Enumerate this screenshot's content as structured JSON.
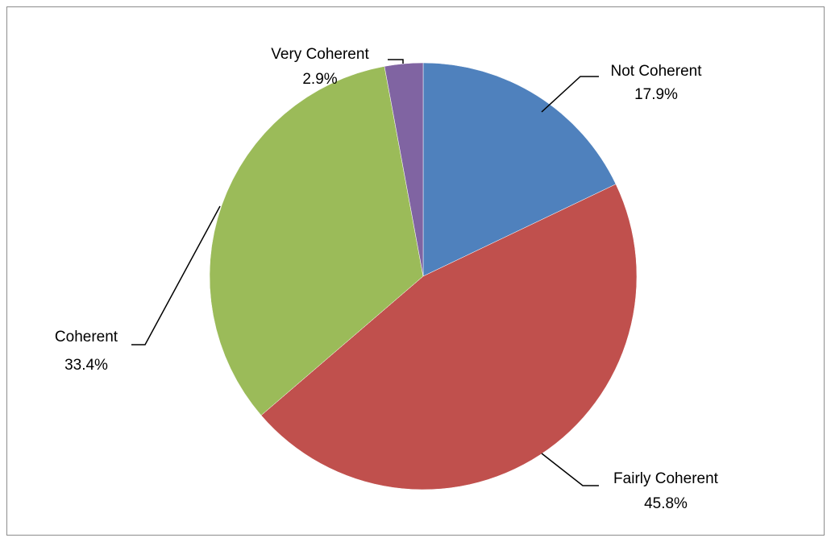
{
  "chart_data": {
    "type": "pie",
    "title": "",
    "start_angle_deg": 0,
    "direction": "clockwise",
    "series": [
      {
        "values": [
          17.9,
          45.8,
          33.4,
          2.9
        ],
        "categories": [
          "Not Coherent",
          "Fairly Coherent",
          "Coherent",
          "Very Coherent"
        ]
      }
    ],
    "slices": [
      {
        "label": "Not Coherent",
        "value": 17.9,
        "percent_label": "17.9%",
        "color": "#4f81bd"
      },
      {
        "label": "Fairly Coherent",
        "value": 45.8,
        "percent_label": "45.8%",
        "color": "#c0504d"
      },
      {
        "label": "Coherent",
        "value": 33.4,
        "percent_label": "33.4%",
        "color": "#9bbb59"
      },
      {
        "label": "Very Coherent",
        "value": 2.9,
        "percent_label": "2.9%",
        "color": "#8064a2"
      }
    ],
    "legend": "none",
    "data_labels": "outside-with-leader-lines"
  }
}
